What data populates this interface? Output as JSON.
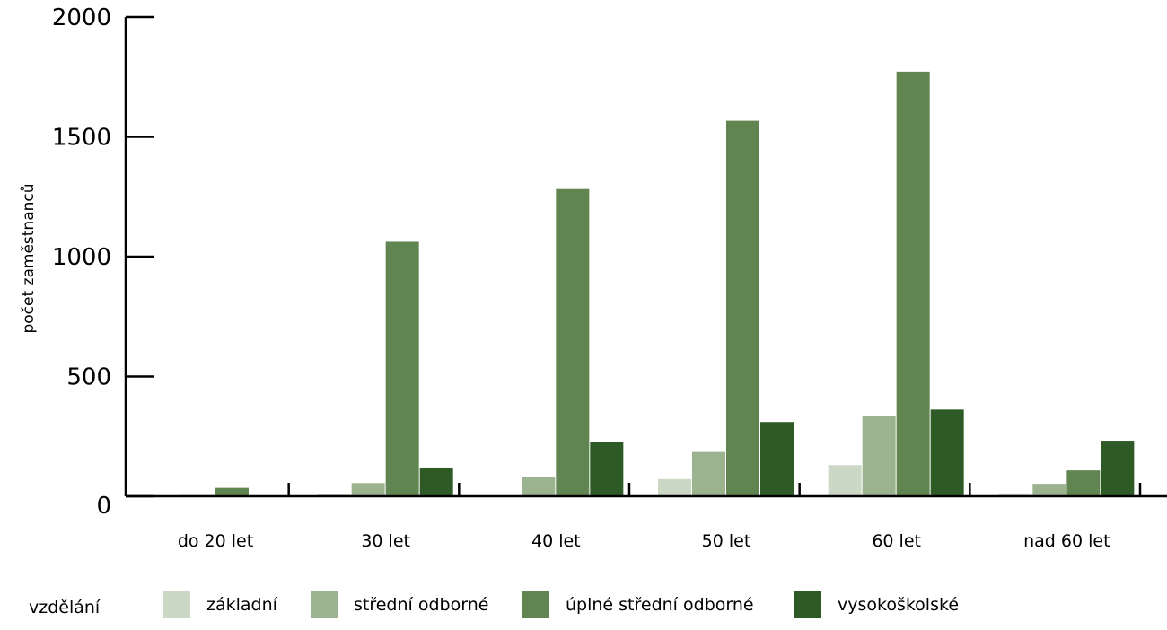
{
  "chart_data": {
    "type": "bar",
    "categories": [
      "do 20 let",
      "30 let",
      "40 let",
      "50 let",
      "60 let",
      "nad 60 let"
    ],
    "series": [
      {
        "name": "základní",
        "color": "#ccd8c6",
        "values": [
          3,
          8,
          4,
          72,
          130,
          12
        ]
      },
      {
        "name": "střední odborné",
        "color": "#9cb390",
        "values": [
          5,
          55,
          82,
          185,
          335,
          52
        ]
      },
      {
        "name": "úplné střední odborné",
        "color": "#618551",
        "values": [
          35,
          1062,
          1282,
          1567,
          1772,
          108
        ]
      },
      {
        "name": "vysokoškolské",
        "color": "#2e5a25",
        "values": [
          3,
          120,
          225,
          310,
          362,
          232
        ]
      }
    ],
    "ylabel": "počet zaměstnanců",
    "ylim": [
      0,
      2000
    ],
    "yticks": [
      0,
      500,
      1000,
      1500,
      2000
    ],
    "legend": {
      "title": "vzdělání",
      "placement": "bottom"
    },
    "grid": false
  }
}
